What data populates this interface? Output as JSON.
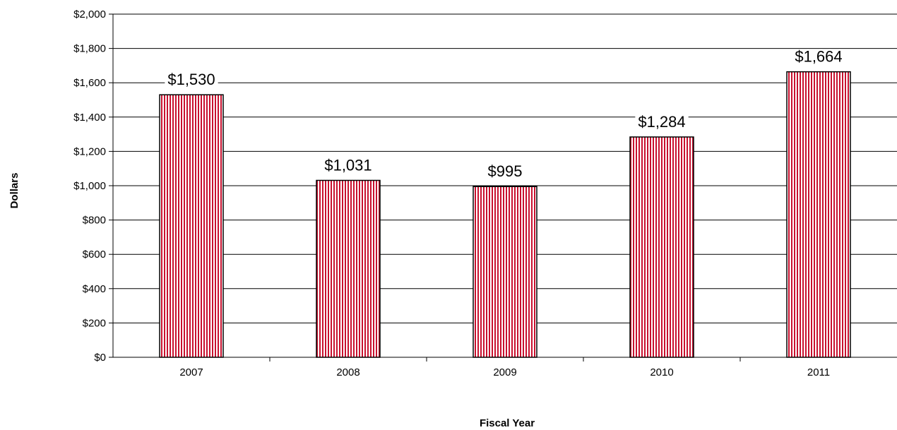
{
  "chart_data": {
    "type": "bar",
    "categories": [
      "2007",
      "2008",
      "2009",
      "2010",
      "2011"
    ],
    "values": [
      1530,
      1031,
      995,
      1284,
      1664
    ],
    "data_labels": [
      "$1,530",
      "$1,031",
      "$995",
      "$1,284",
      "$1,664"
    ],
    "title": "",
    "xlabel": "Fiscal Year",
    "ylabel": "Dollars",
    "ylim": [
      0,
      2000
    ],
    "yticks": [
      0,
      200,
      400,
      600,
      800,
      1000,
      1200,
      1400,
      1600,
      1800,
      2000
    ],
    "ytick_labels": [
      "$0",
      "$200",
      "$400",
      "$600",
      "$800",
      "$1,000",
      "$1,200",
      "$1,400",
      "$1,600",
      "$1,800",
      "$2,000"
    ],
    "grid": true,
    "legend": "none",
    "bar_colors": {
      "stripe": "#c8102e",
      "background": "#ffffff",
      "outline": "#000000"
    }
  }
}
